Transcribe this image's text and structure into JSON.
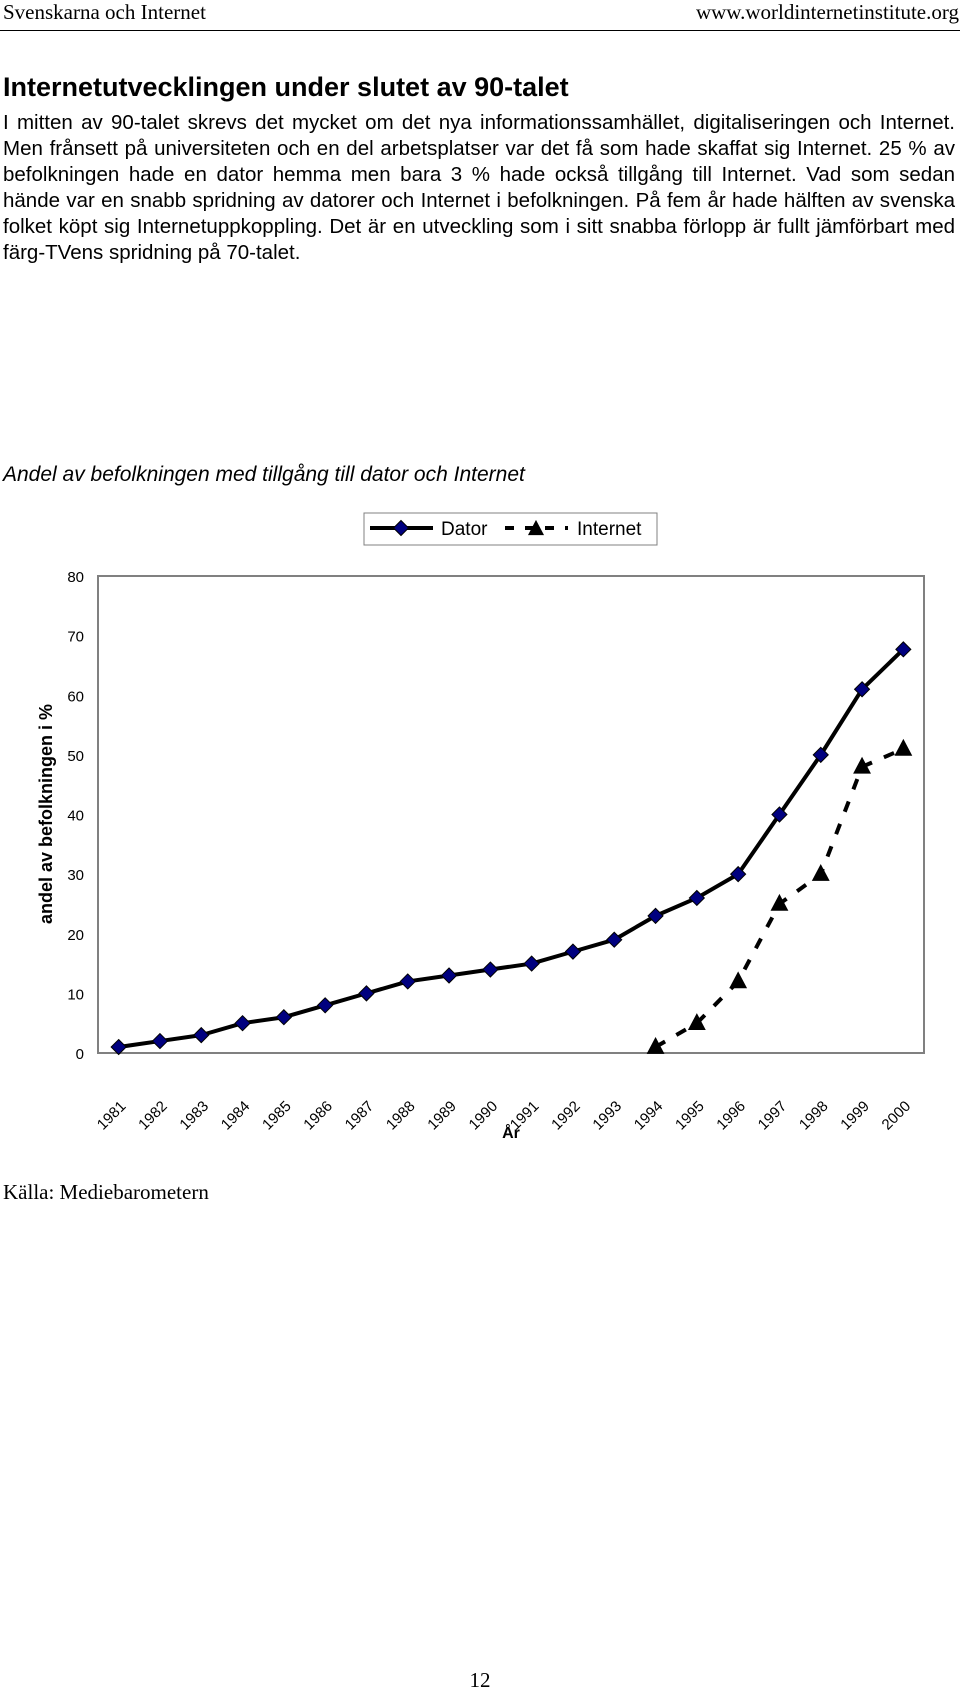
{
  "header": {
    "left": "Svenskarna och Internet",
    "right": "www.worldinternetinstitute.org"
  },
  "heading": "Internetutvecklingen under slutet av 90-talet",
  "paragraph": "I mitten av 90-talet skrevs det mycket om det nya informationssamhället, digitaliseringen och Internet. Men frånsett på universiteten och en del arbetsplatser var det få som hade skaffat sig Internet. 25 % av befolkningen hade en dator hemma men bara 3 % hade också tillgång till Internet. Vad som sedan hände var en snabb spridning av datorer och Internet i befolkningen. På fem år hade hälften av svenska folket köpt sig Internetuppkoppling. Det är en utveckling som i sitt snabba förlopp är fullt jämförbart med färg-TVens spridning på 70-talet.",
  "chart_data": {
    "type": "line",
    "title": "Andel av befolkningen med tillgång till dator och Internet",
    "xlabel": "År",
    "ylabel": "andel av befolkningen i %",
    "ylim": [
      0,
      80
    ],
    "yticks": [
      "0",
      "10",
      "20",
      "30",
      "40",
      "50",
      "60",
      "70",
      "80"
    ],
    "categories": [
      "1981",
      "1982",
      "1983",
      "1984",
      "1985",
      "1986",
      "1987",
      "1988",
      "1989",
      "1990",
      "1991",
      "1992",
      "1993",
      "1994",
      "1995",
      "1996",
      "1997",
      "1998",
      "1999",
      "2000"
    ],
    "legend_position": "top-right",
    "grid": false,
    "series": [
      {
        "name": "Dator",
        "values": [
          1,
          2,
          3,
          5,
          6,
          8,
          10,
          12,
          13,
          14,
          15,
          17,
          19,
          23,
          26,
          30,
          40,
          50,
          61,
          67.7
        ],
        "color": "#000000",
        "marker": "diamond",
        "marker_color": "#00007f",
        "line_style": "solid"
      },
      {
        "name": "Internet",
        "values": [
          null,
          null,
          null,
          null,
          null,
          null,
          null,
          null,
          null,
          null,
          null,
          null,
          null,
          1,
          5,
          12,
          25,
          30,
          48,
          51
        ],
        "color": "#000000",
        "marker": "triangle",
        "marker_color": "#000000",
        "line_style": "dashed"
      }
    ]
  },
  "source": "Källa: Mediebarometern",
  "page_number": "12"
}
